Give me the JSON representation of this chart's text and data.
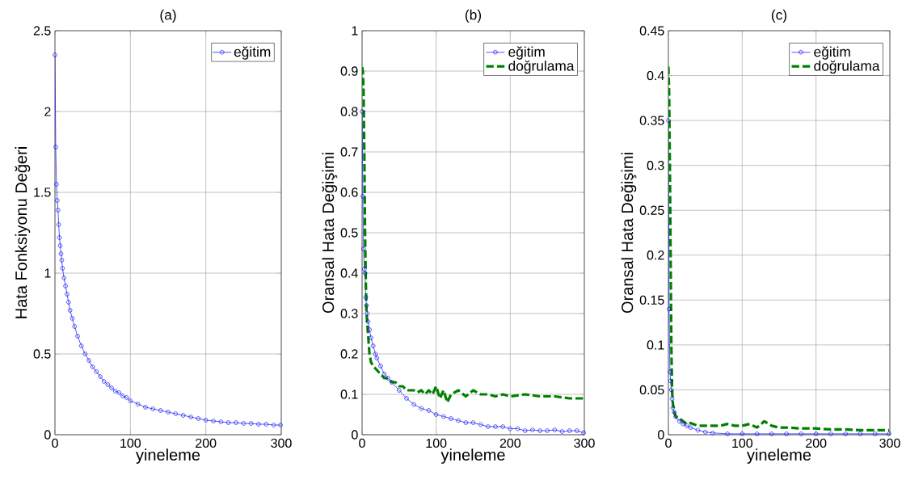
{
  "chart_data": [
    {
      "type": "line",
      "title": "(a)",
      "xlabel": "yineleme",
      "ylabel": "Hata Fonksiyonu Değeri",
      "xlim": [
        0,
        300
      ],
      "xticks": [
        0,
        100,
        200,
        300
      ],
      "ylim": [
        0,
        2.5
      ],
      "yticks": [
        0,
        0.5,
        1,
        1.5,
        2,
        2.5
      ],
      "grid": true,
      "legend": "top right",
      "series": [
        {
          "name": "eğitim",
          "color": "#0000ff",
          "marker": "circle",
          "line_style": "solid",
          "x": [
            0,
            1,
            2,
            3,
            4,
            5,
            6,
            7,
            8,
            9,
            10,
            12,
            14,
            16,
            18,
            20,
            23,
            26,
            30,
            35,
            40,
            45,
            50,
            55,
            60,
            65,
            70,
            75,
            80,
            85,
            90,
            95,
            100,
            110,
            120,
            130,
            140,
            150,
            160,
            170,
            180,
            190,
            200,
            210,
            220,
            230,
            240,
            250,
            260,
            270,
            280,
            290,
            299
          ],
          "values": [
            2.35,
            1.78,
            1.55,
            1.45,
            1.39,
            1.3,
            1.22,
            1.17,
            1.12,
            1.08,
            1.03,
            0.97,
            0.92,
            0.87,
            0.82,
            0.77,
            0.72,
            0.67,
            0.61,
            0.55,
            0.5,
            0.46,
            0.42,
            0.39,
            0.36,
            0.33,
            0.31,
            0.29,
            0.27,
            0.26,
            0.24,
            0.23,
            0.21,
            0.19,
            0.17,
            0.16,
            0.15,
            0.14,
            0.13,
            0.12,
            0.11,
            0.1,
            0.09,
            0.085,
            0.08,
            0.075,
            0.075,
            0.07,
            0.07,
            0.065,
            0.065,
            0.06,
            0.06
          ]
        }
      ]
    },
    {
      "type": "line",
      "title": "(b)",
      "xlabel": "yineleme",
      "ylabel": "Oransal Hata Değişimi",
      "xlim": [
        0,
        300
      ],
      "xticks": [
        0,
        100,
        200,
        300
      ],
      "ylim": [
        0,
        1
      ],
      "yticks": [
        0,
        0.1,
        0.2,
        0.3,
        0.4,
        0.5,
        0.6,
        0.7,
        0.8,
        0.9,
        1
      ],
      "grid": true,
      "legend": "top right",
      "series": [
        {
          "name": "eğitim",
          "color": "#0000ff",
          "marker": "circle",
          "line_style": "solid",
          "x": [
            0,
            1,
            2,
            3,
            4,
            5,
            6,
            7,
            8,
            10,
            12,
            15,
            18,
            20,
            25,
            30,
            35,
            40,
            50,
            60,
            70,
            80,
            90,
            100,
            110,
            120,
            130,
            140,
            150,
            160,
            170,
            180,
            190,
            200,
            210,
            220,
            230,
            240,
            250,
            260,
            270,
            280,
            290,
            299
          ],
          "values": [
            0.8,
            0.59,
            0.46,
            0.41,
            0.4,
            0.34,
            0.32,
            0.3,
            0.28,
            0.26,
            0.24,
            0.22,
            0.2,
            0.19,
            0.17,
            0.15,
            0.14,
            0.13,
            0.11,
            0.09,
            0.075,
            0.065,
            0.06,
            0.05,
            0.045,
            0.04,
            0.035,
            0.03,
            0.03,
            0.025,
            0.02,
            0.02,
            0.02,
            0.015,
            0.015,
            0.01,
            0.012,
            0.01,
            0.01,
            0.012,
            0.008,
            0.01,
            0.01,
            0.005
          ]
        },
        {
          "name": "doğrulama",
          "color": "#008000",
          "marker": "none",
          "line_style": "dashed",
          "x": [
            0,
            1,
            2,
            3,
            4,
            5,
            6,
            8,
            10,
            12,
            15,
            20,
            25,
            30,
            35,
            40,
            45,
            50,
            55,
            60,
            70,
            75,
            80,
            85,
            90,
            95,
            100,
            105,
            110,
            115,
            120,
            130,
            140,
            150,
            160,
            170,
            180,
            190,
            200,
            220,
            240,
            260,
            280,
            299
          ],
          "values": [
            0.91,
            0.9,
            0.85,
            0.7,
            0.5,
            0.38,
            0.3,
            0.25,
            0.2,
            0.18,
            0.17,
            0.16,
            0.15,
            0.14,
            0.14,
            0.13,
            0.13,
            0.12,
            0.12,
            0.11,
            0.11,
            0.105,
            0.11,
            0.1,
            0.11,
            0.1,
            0.12,
            0.09,
            0.11,
            0.08,
            0.1,
            0.11,
            0.095,
            0.11,
            0.1,
            0.1,
            0.095,
            0.1,
            0.095,
            0.1,
            0.095,
            0.095,
            0.09,
            0.09
          ]
        }
      ]
    },
    {
      "type": "line",
      "title": "(c)",
      "xlabel": "yineleme",
      "ylabel": "Oransal Hata Değişimi",
      "xlim": [
        0,
        300
      ],
      "xticks": [
        0,
        100,
        200,
        300
      ],
      "ylim": [
        0,
        0.45
      ],
      "yticks": [
        0,
        0.05,
        0.1,
        0.15,
        0.2,
        0.25,
        0.3,
        0.35,
        0.4,
        0.45
      ],
      "grid": true,
      "legend": "top right",
      "series": [
        {
          "name": "eğitim",
          "color": "#0000ff",
          "marker": "circle",
          "line_style": "solid",
          "x": [
            0,
            1,
            2,
            3,
            4,
            5,
            6,
            8,
            10,
            15,
            20,
            25,
            30,
            40,
            50,
            60,
            80,
            100,
            120,
            140,
            160,
            180,
            200,
            220,
            240,
            260,
            280,
            299
          ],
          "values": [
            0.35,
            0.14,
            0.07,
            0.06,
            0.05,
            0.04,
            0.03,
            0.025,
            0.02,
            0.015,
            0.012,
            0.01,
            0.008,
            0.005,
            0.003,
            0.002,
            0.001,
            0.001,
            0.001,
            0.001,
            0.001,
            0.001,
            0.001,
            0.001,
            0.001,
            0.001,
            0.001,
            0.001
          ]
        },
        {
          "name": "doğrulama",
          "color": "#008000",
          "marker": "none",
          "line_style": "dashed",
          "x": [
            0,
            1,
            2,
            3,
            4,
            5,
            6,
            8,
            10,
            15,
            20,
            25,
            30,
            40,
            50,
            60,
            70,
            80,
            90,
            100,
            110,
            120,
            130,
            140,
            150,
            160,
            180,
            200,
            220,
            240,
            260,
            280,
            299
          ],
          "values": [
            0.41,
            0.38,
            0.3,
            0.2,
            0.1,
            0.05,
            0.035,
            0.025,
            0.02,
            0.018,
            0.015,
            0.012,
            0.013,
            0.01,
            0.01,
            0.01,
            0.01,
            0.012,
            0.01,
            0.01,
            0.012,
            0.008,
            0.015,
            0.01,
            0.008,
            0.008,
            0.007,
            0.007,
            0.006,
            0.006,
            0.005,
            0.005,
            0.005
          ]
        }
      ]
    }
  ]
}
